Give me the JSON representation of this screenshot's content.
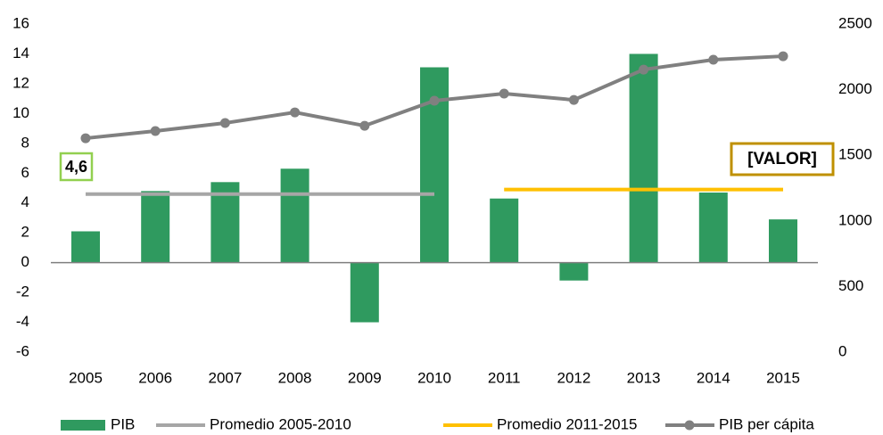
{
  "chart_data": {
    "type": "bar",
    "categories": [
      "2005",
      "2006",
      "2007",
      "2008",
      "2009",
      "2010",
      "2011",
      "2012",
      "2013",
      "2014",
      "2015"
    ],
    "series": [
      {
        "name": "PIB",
        "type": "bar",
        "color": "#2f9a5f",
        "values": [
          2.1,
          4.8,
          5.4,
          6.3,
          -4.0,
          13.1,
          4.3,
          -1.2,
          14.0,
          4.7,
          2.9
        ]
      },
      {
        "name": "Promedio 2005-2010",
        "type": "line",
        "color": "#a6a6a6",
        "values": [
          4.6,
          4.6,
          4.6,
          4.6,
          4.6,
          4.6,
          null,
          null,
          null,
          null,
          null
        ],
        "value_labels": [
          "4,6",
          null,
          null,
          null,
          null,
          null,
          null,
          null,
          null,
          null,
          null
        ],
        "label_color": "#92d050"
      },
      {
        "name": "Promedio 2011-2015",
        "type": "line",
        "color": "#ffc000",
        "values": [
          null,
          null,
          null,
          null,
          null,
          null,
          4.9,
          4.9,
          4.9,
          4.9,
          4.9
        ]
      },
      {
        "name": "PIB per cápita",
        "type": "line",
        "axis": "y2",
        "markers": true,
        "color": "#808080",
        "values": [
          1630,
          1685,
          1746,
          1827,
          1725,
          1916,
          1970,
          1922,
          2153,
          2228,
          2255
        ]
      }
    ],
    "annotations": [
      "[VALOR]"
    ],
    "annotation_color": "#bf9000",
    "ylim": [
      -6,
      16
    ],
    "yticks": [
      -6,
      -4,
      -2,
      0,
      2,
      4,
      6,
      8,
      10,
      12,
      14,
      16
    ],
    "y2lim": [
      0,
      2500
    ],
    "y2ticks": [
      0,
      500,
      1000,
      1500,
      2000,
      2500
    ],
    "grid": false,
    "legend": "bottom"
  }
}
